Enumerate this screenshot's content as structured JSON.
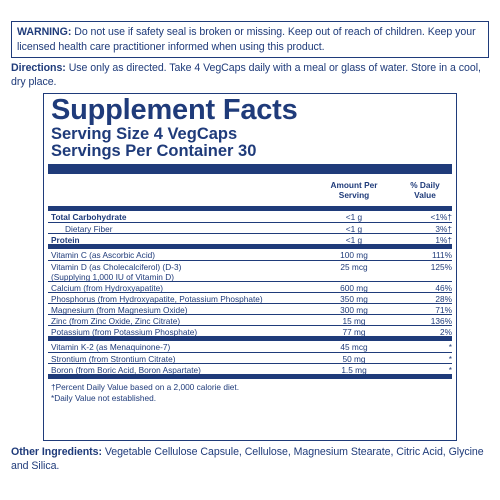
{
  "warning": {
    "label": "WARNING:",
    "text": " Do not use if safety seal is broken or missing. Keep out of reach of children. Keep your licensed health care practitioner informed when using this product."
  },
  "directions": {
    "label": "Directions:",
    "text": " Use only as directed. Take 4 VegCaps daily with a meal or glass of water. Store in a cool, dry place."
  },
  "facts": {
    "title": "Supplement Facts",
    "serving_size": "Serving Size 4 VegCaps",
    "servings_per_container": "Servings Per Container 30",
    "header_amount_line1": "Amount Per",
    "header_amount_line2": "Serving",
    "header_dv_line1": "% Daily",
    "header_dv_line2": "Value",
    "group1": [
      {
        "name": "Total Carbohydrate",
        "amount": "<1 g",
        "dv": "<1%†"
      },
      {
        "name": "Dietary Fiber",
        "amount": "<1 g",
        "dv": "3%†"
      },
      {
        "name": "Protein",
        "amount": "<1 g",
        "dv": "1%†"
      }
    ],
    "group2": [
      {
        "name": "Vitamin C (as Ascorbic Acid)",
        "amount": "100 mg",
        "dv": "111%"
      },
      {
        "name": "Vitamin D (as Cholecalciferol) (D-3)",
        "name2": "(Supplying 1,000 IU of Vitamin D)",
        "amount": "25 mcg",
        "dv": "125%"
      },
      {
        "name": "Calcium (from Hydroxyapatite)",
        "amount": "600 mg",
        "dv": "46%"
      },
      {
        "name": "Phosphorus (from Hydroxyapatite, Potassium Phosphate)",
        "amount": "350 mg",
        "dv": "28%"
      },
      {
        "name": "Magnesium (from Magnesium Oxide)",
        "amount": "300 mg",
        "dv": "71%"
      },
      {
        "name": "Zinc (from Zinc Oxide, Zinc Citrate)",
        "amount": "15 mg",
        "dv": "136%"
      },
      {
        "name": "Potassium (from Potassium Phosphate)",
        "amount": "77 mg",
        "dv": "2%"
      }
    ],
    "group3": [
      {
        "name": "Vitamin K-2 (as Menaquinone-7)",
        "amount": "45 mcg",
        "dv": "*"
      },
      {
        "name": "Strontium (from Strontium Citrate)",
        "amount": "50 mg",
        "dv": "*"
      },
      {
        "name": "Boron (from Boric Acid, Boron Aspartate)",
        "amount": "1.5 mg",
        "dv": "*"
      }
    ],
    "footnote1": "†Percent Daily Value based on a 2,000 calorie diet.",
    "footnote2": "*Daily Value not established."
  },
  "other": {
    "label": "Other Ingredients:",
    "text": " Vegetable Cellulose Capsule, Cellulose, Magnesium Stearate, Citric Acid, Glycine and Silica."
  }
}
